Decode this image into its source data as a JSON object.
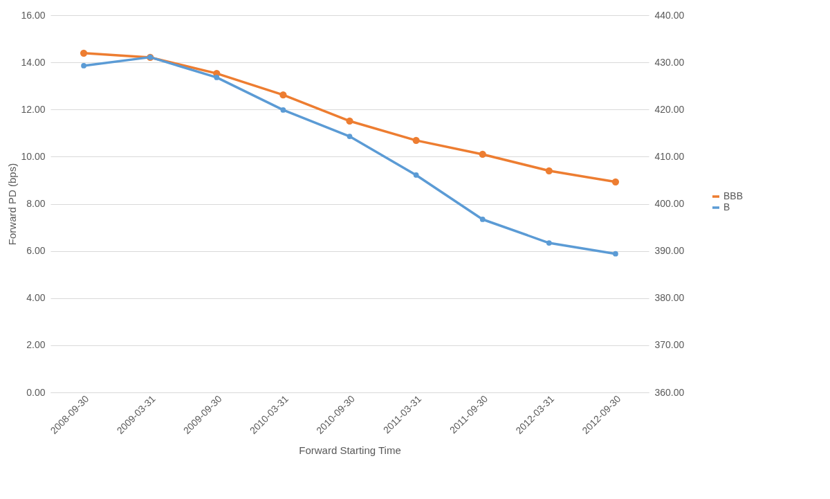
{
  "chart_data": {
    "type": "line",
    "xlabel": "Forward Starting Time",
    "ylabel": "Forward PD (bps)",
    "categories": [
      "2008-09-30",
      "2009-03-31",
      "2009-09-30",
      "2010-03-31",
      "2010-09-30",
      "2011-03-31",
      "2011-09-30",
      "2012-03-31",
      "2012-09-30"
    ],
    "series": [
      {
        "name": "BBB",
        "color": "#ed7d31",
        "values": [
          14.39,
          14.21,
          13.53,
          12.62,
          11.51,
          10.69,
          10.1,
          9.4,
          8.93
        ]
      },
      {
        "name": "B",
        "color": "#5b9bd5",
        "axis": "y2",
        "values": [
          429.3,
          431.1,
          426.8,
          419.9,
          414.3,
          406.1,
          396.7,
          391.7,
          389.4
        ]
      }
    ],
    "ylim": [
      0,
      16
    ],
    "yticks": [
      {
        "value": 0,
        "label": "0.00"
      },
      {
        "value": 2,
        "label": "2.00"
      },
      {
        "value": 4,
        "label": "4.00"
      },
      {
        "value": 6,
        "label": "6.00"
      },
      {
        "value": 8,
        "label": "8.00"
      },
      {
        "value": 10,
        "label": "10.00"
      },
      {
        "value": 12,
        "label": "12.00"
      },
      {
        "value": 14,
        "label": "14.00"
      },
      {
        "value": 16,
        "label": "16.00"
      }
    ],
    "y2lim": [
      360,
      440
    ],
    "y2ticks": [
      {
        "value": 360,
        "label": "360.00"
      },
      {
        "value": 370,
        "label": "370.00"
      },
      {
        "value": 380,
        "label": "380.00"
      },
      {
        "value": 390,
        "label": "390.00"
      },
      {
        "value": 400,
        "label": "400.00"
      },
      {
        "value": 410,
        "label": "410.00"
      },
      {
        "value": 420,
        "label": "420.00"
      },
      {
        "value": 430,
        "label": "430.00"
      },
      {
        "value": 440,
        "label": "440.00"
      }
    ],
    "grid": "y",
    "legend": "right",
    "marker": "circle",
    "line_style": "solid"
  }
}
